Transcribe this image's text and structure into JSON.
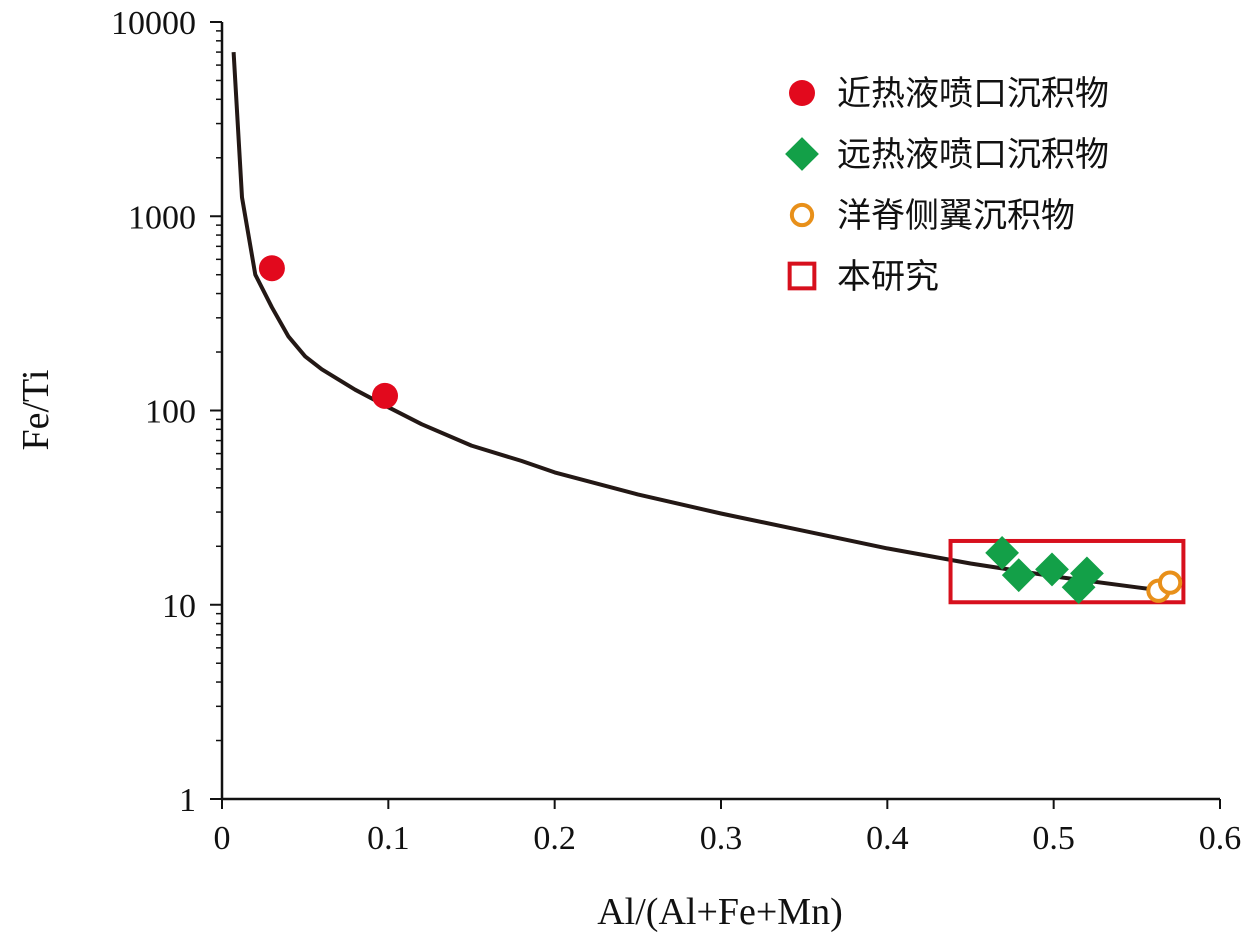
{
  "chart_data": {
    "type": "scatter",
    "xlabel": "Al/(Al+Fe+Mn)",
    "ylabel": "Fe/Ti",
    "xlim": [
      0,
      0.6
    ],
    "ylim": [
      1,
      10000
    ],
    "yscale": "log",
    "x_ticks": [
      "0",
      "0.1",
      "0.2",
      "0.3",
      "0.4",
      "0.5",
      "0.6"
    ],
    "y_ticks": [
      "1",
      "10",
      "100",
      "1000",
      "10000"
    ],
    "grid": false,
    "legend_position": "top-right",
    "curve": {
      "points": [
        [
          0.007,
          7000
        ],
        [
          0.012,
          1250
        ],
        [
          0.02,
          500
        ],
        [
          0.03,
          340
        ],
        [
          0.04,
          240
        ],
        [
          0.05,
          190
        ],
        [
          0.06,
          163
        ],
        [
          0.08,
          128
        ],
        [
          0.1,
          104
        ],
        [
          0.12,
          85
        ],
        [
          0.15,
          66
        ],
        [
          0.18,
          55
        ],
        [
          0.2,
          48
        ],
        [
          0.25,
          37
        ],
        [
          0.3,
          29.5
        ],
        [
          0.35,
          24
        ],
        [
          0.4,
          19.5
        ],
        [
          0.45,
          16.3
        ],
        [
          0.5,
          14
        ],
        [
          0.55,
          12.3
        ],
        [
          0.56,
          12
        ]
      ]
    },
    "series": [
      {
        "name": "近热液喷口沉积物",
        "marker": "circle-filled",
        "color": "#e2091d",
        "points": [
          [
            0.03,
            540
          ],
          [
            0.098,
            119
          ]
        ]
      },
      {
        "name": "远热液喷口沉积物",
        "marker": "diamond",
        "color": "#13a048",
        "points": [
          [
            0.469,
            18.5
          ],
          [
            0.479,
            14.2
          ],
          [
            0.499,
            15.2
          ],
          [
            0.515,
            12.3
          ],
          [
            0.52,
            14.5
          ]
        ]
      },
      {
        "name": "洋脊侧翼沉积物",
        "marker": "circle-open",
        "color": "#e8901a",
        "points": [
          [
            0.563,
            11.8
          ],
          [
            0.57,
            13
          ]
        ]
      }
    ],
    "study_box": {
      "name": "本研究",
      "x_range": [
        0.438,
        0.578
      ],
      "y_range": [
        10.3,
        21.3
      ],
      "color": "#d7101d"
    }
  }
}
